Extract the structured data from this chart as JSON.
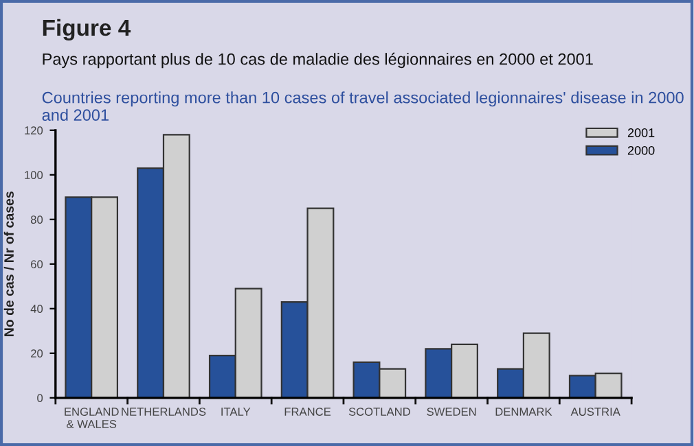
{
  "chart_data": {
    "type": "bar",
    "title": "Figure 4",
    "subtitle": "Pays rapportant plus de 10 cas de maladie des légionnaires en 2000 et 2001",
    "annotations": [
      "Countries reporting more than 10 cases of travel associated legionnaires' disease in 2000 and 2001"
    ],
    "ylabel": "No de cas / Nr of cases",
    "categories": [
      "ENGLAND\n& WALES",
      "NETHERLANDS",
      "ITALY",
      "FRANCE",
      "SCOTLAND",
      "SWEDEN",
      "DENMARK",
      "AUSTRIA"
    ],
    "series": [
      {
        "name": "2000",
        "color": "#26519a",
        "values": [
          90,
          103,
          19,
          43,
          16,
          22,
          13,
          10
        ]
      },
      {
        "name": "2001",
        "color": "#d0d0d0",
        "values": [
          90,
          118,
          49,
          85,
          13,
          24,
          29,
          11
        ]
      }
    ],
    "ylim": [
      0,
      120
    ],
    "yticks": [
      0,
      20,
      40,
      60,
      80,
      100,
      120
    ],
    "grid": false,
    "legend": "top right"
  }
}
